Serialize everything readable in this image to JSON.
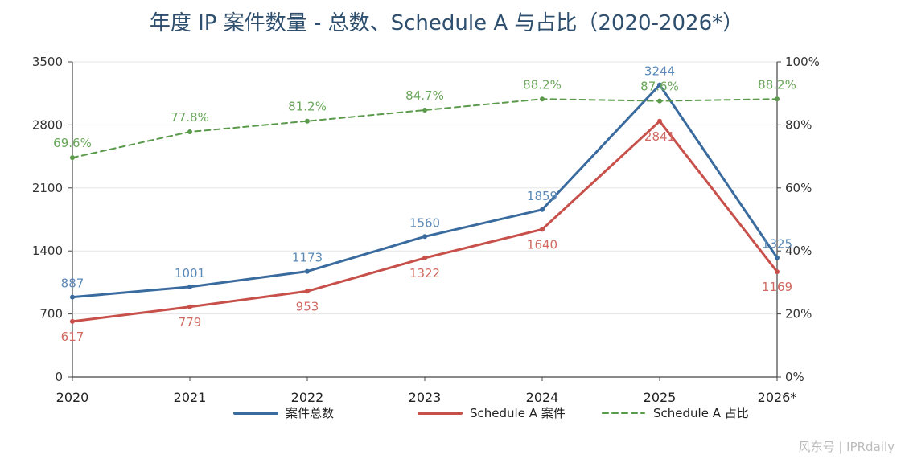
{
  "chart_data": {
    "type": "line",
    "title": "年度 IP 案件数量 - 总数、Schedule A 与占比（2020-2026*）",
    "categories": [
      "2020",
      "2021",
      "2022",
      "2023",
      "2024",
      "2025",
      "2026*"
    ],
    "y_left": {
      "ylim": [
        0,
        3500
      ],
      "ticks": [
        "0",
        "700",
        "1400",
        "2100",
        "2800",
        "3500"
      ]
    },
    "y_right": {
      "ylim": [
        0,
        100
      ],
      "ticks": [
        "0%",
        "20%",
        "40%",
        "60%",
        "80%",
        "100%"
      ]
    },
    "grid": true,
    "legend_position": "bottom",
    "series": [
      {
        "name": "案件总数",
        "axis": "left",
        "style": "solid",
        "color": "#3a6b9e",
        "label_color": "#5b8ab8",
        "values": [
          887,
          1001,
          1173,
          1560,
          1859,
          3244,
          1325
        ],
        "labels": [
          "887",
          "1001",
          "1173",
          "1560",
          "1859",
          "3244",
          "1325"
        ]
      },
      {
        "name": "Schedule A 案件",
        "axis": "left",
        "style": "solid",
        "color": "#c8504a",
        "label_color": "#d06a62",
        "values": [
          617,
          779,
          953,
          1322,
          1640,
          2841,
          1169
        ],
        "labels": [
          "617",
          "779",
          "953",
          "1322",
          "1640",
          "2841",
          "1169"
        ]
      },
      {
        "name": "Schedule A 占比",
        "axis": "right",
        "style": "dashed",
        "color": "#5a9a4a",
        "label_color": "#6aa65a",
        "values": [
          69.6,
          77.8,
          81.2,
          84.7,
          88.2,
          87.6,
          88.2
        ],
        "labels": [
          "69.6%",
          "77.8%",
          "81.2%",
          "84.7%",
          "88.2%",
          "87.6%",
          "88.2%"
        ]
      }
    ]
  },
  "watermark": "风东号 | IPRdaily"
}
